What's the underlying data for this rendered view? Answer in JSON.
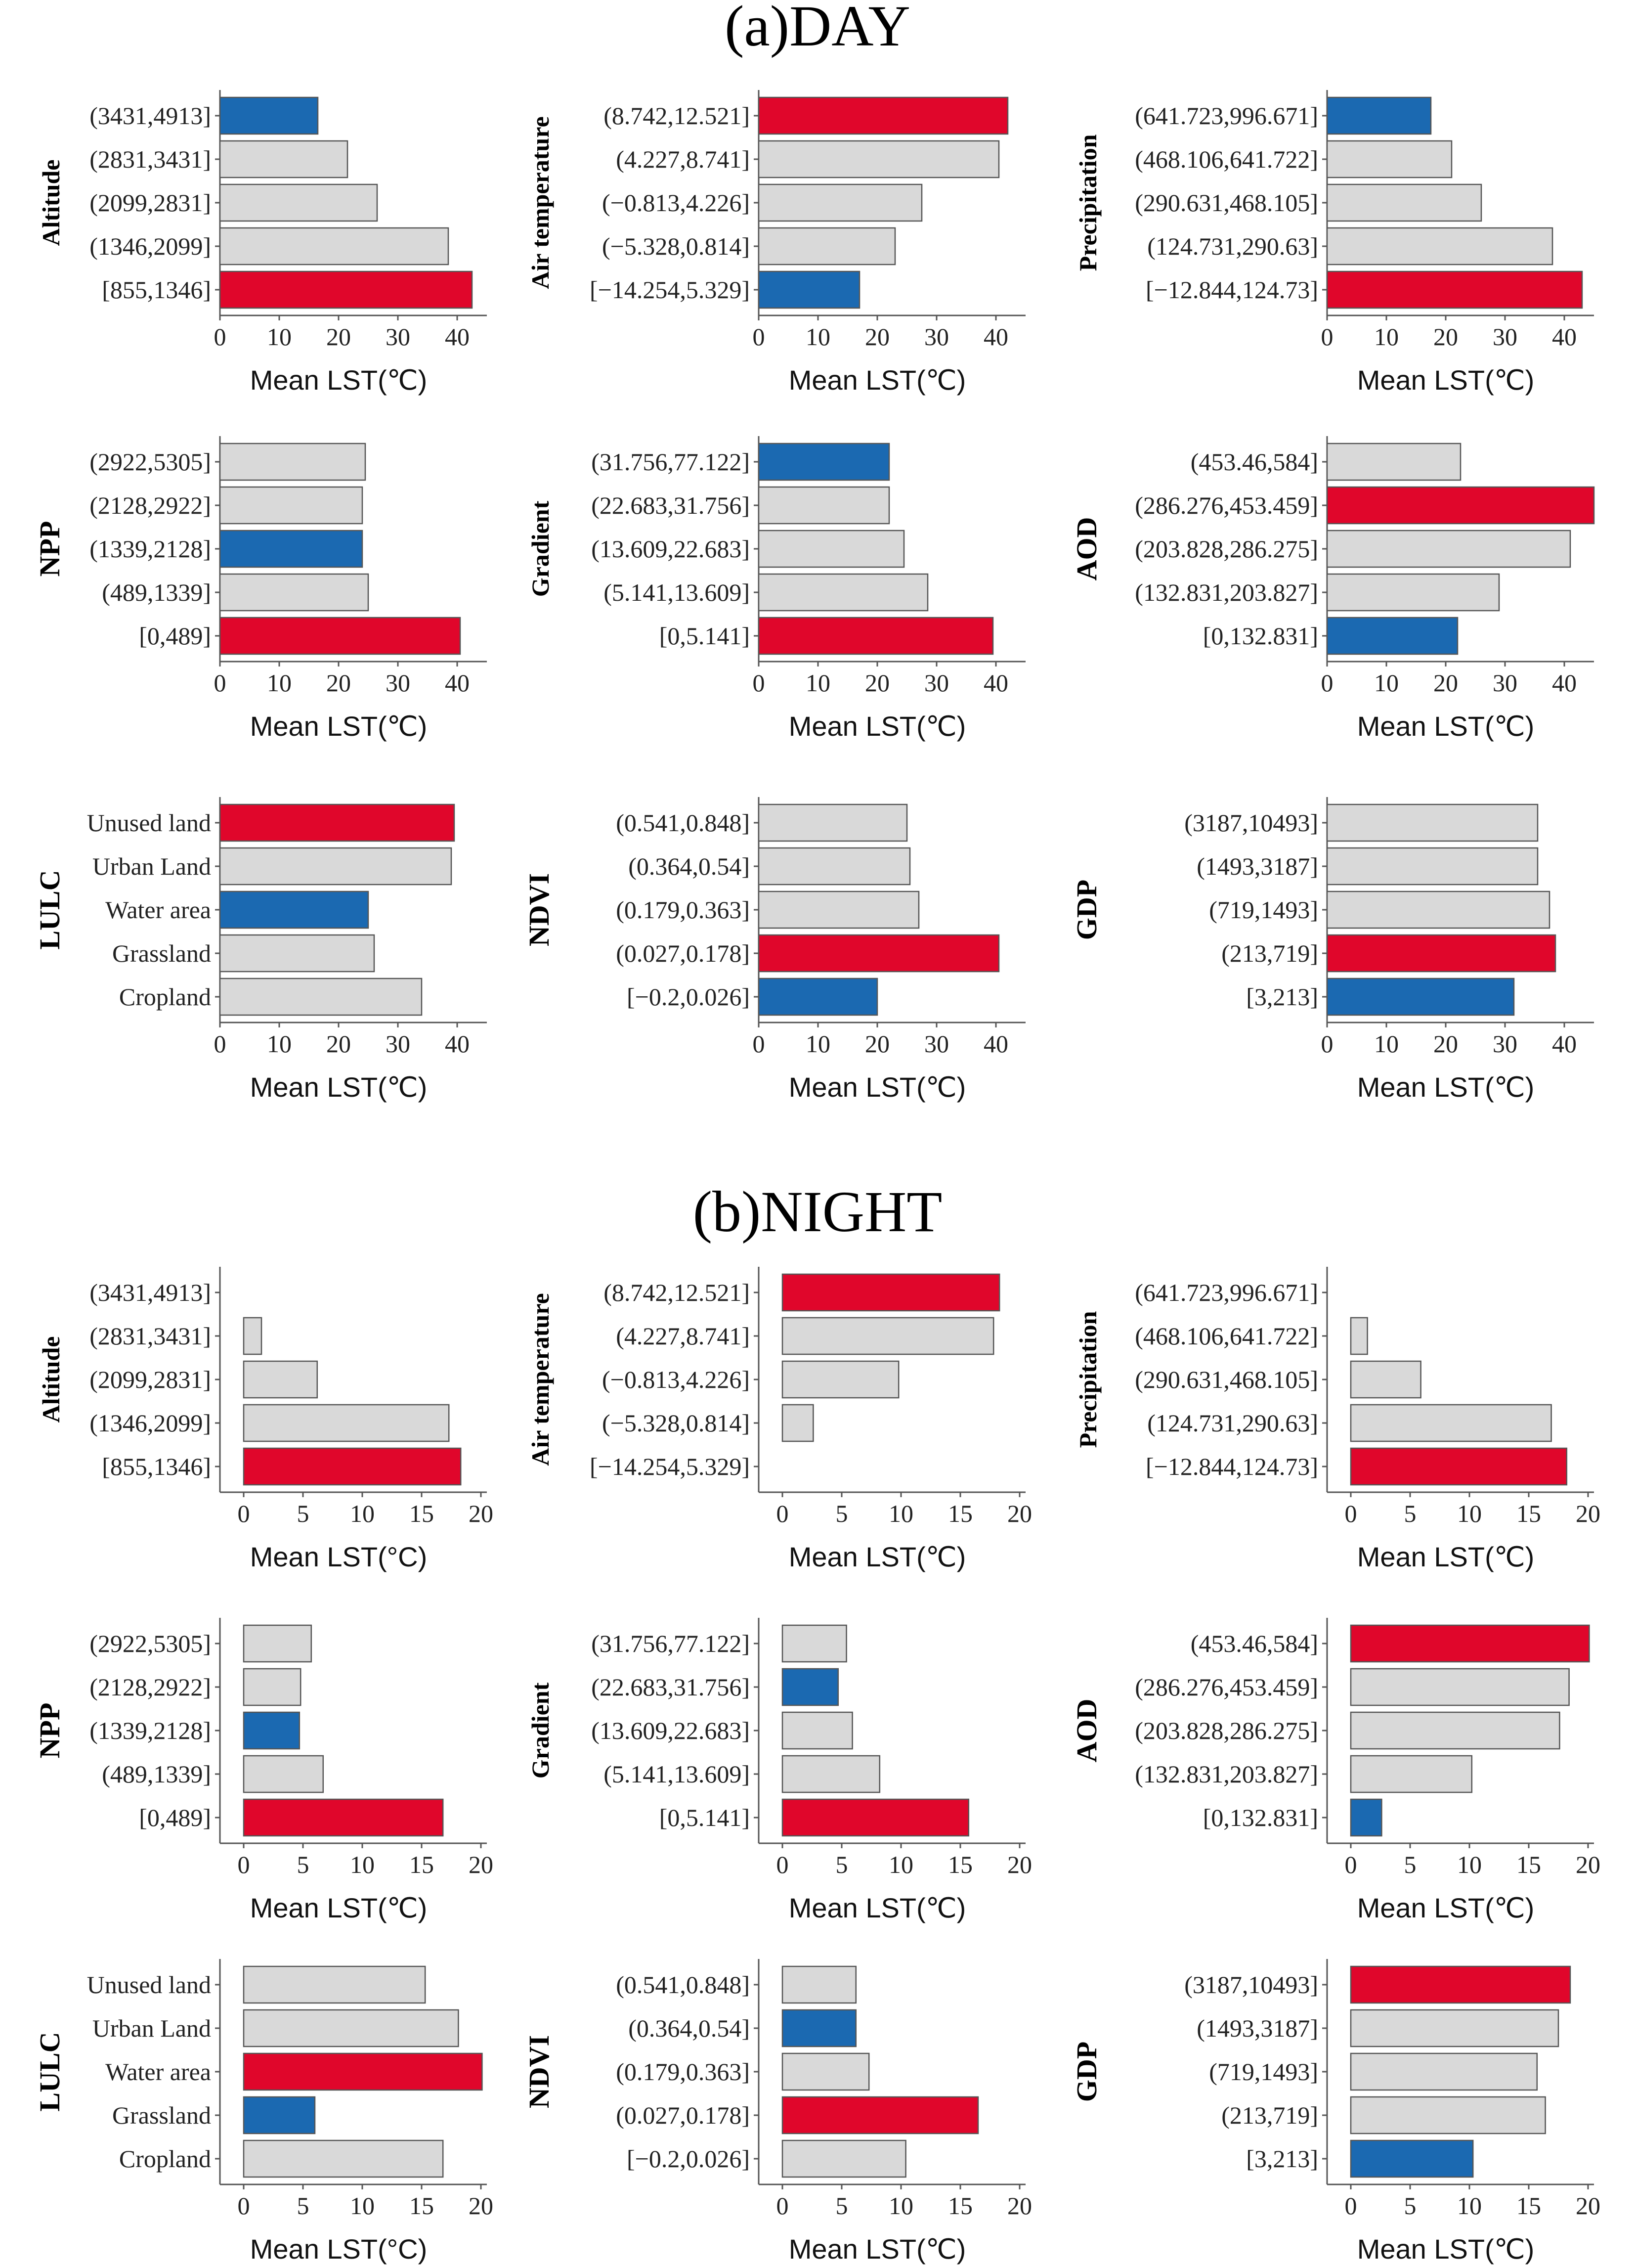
{
  "sections": [
    {
      "title": "(a)DAY"
    },
    {
      "title": "(b)NIGHT"
    }
  ],
  "colors": {
    "highest": "#e0062b",
    "lowest": "#1b69b1",
    "other": "#d9d9d9",
    "edge": "#555555"
  },
  "chart_data": [
    {
      "type": "bar",
      "orientation": "horizontal",
      "section": "(a)DAY",
      "title": "",
      "ylabel": "Altitude",
      "xlabel": "Mean LST(℃)",
      "xlim": [
        0,
        45
      ],
      "xticks": [
        0,
        10,
        20,
        30,
        40
      ],
      "categories": [
        "(3431,4913]",
        "(2831,3431]",
        "(2099,2831]",
        "(1346,2099]",
        "[855,1346]"
      ],
      "values": [
        16.5,
        21.5,
        26.5,
        38.5,
        42.5
      ],
      "highlight": [
        "lowest",
        "other",
        "other",
        "other",
        "highest"
      ]
    },
    {
      "type": "bar",
      "orientation": "horizontal",
      "section": "(a)DAY",
      "title": "",
      "ylabel": "Air temperature",
      "xlabel": "Mean LST(℃)",
      "xlim": [
        0,
        45
      ],
      "xticks": [
        0,
        10,
        20,
        30,
        40
      ],
      "categories": [
        "(8.742,12.521]",
        "(4.227,8.741]",
        "(−0.813,4.226]",
        "(−5.328,0.814]",
        "[−14.254,5.329]"
      ],
      "values": [
        42,
        40.5,
        27.5,
        23,
        17
      ],
      "highlight": [
        "highest",
        "other",
        "other",
        "other",
        "lowest"
      ]
    },
    {
      "type": "bar",
      "orientation": "horizontal",
      "section": "(a)DAY",
      "title": "",
      "ylabel": "Precipitation",
      "xlabel": "Mean LST(℃)",
      "xlim": [
        0,
        45
      ],
      "xticks": [
        0,
        10,
        20,
        30,
        40
      ],
      "categories": [
        "(641.723,996.671]",
        "(468.106,641.722]",
        "(290.631,468.105]",
        "(124.731,290.63]",
        "[−12.844,124.73]"
      ],
      "values": [
        17.5,
        21,
        26,
        38,
        43
      ],
      "highlight": [
        "lowest",
        "other",
        "other",
        "other",
        "highest"
      ]
    },
    {
      "type": "bar",
      "orientation": "horizontal",
      "section": "(a)DAY",
      "title": "",
      "ylabel": "NPP",
      "xlabel": "Mean LST(℃)",
      "xlim": [
        0,
        45
      ],
      "xticks": [
        0,
        10,
        20,
        30,
        40
      ],
      "categories": [
        "(2922,5305]",
        "(2128,2922]",
        "(1339,2128]",
        "(489,1339]",
        "[0,489]"
      ],
      "values": [
        24.5,
        24,
        24,
        25,
        40.5
      ],
      "highlight": [
        "other",
        "other",
        "lowest",
        "other",
        "highest"
      ]
    },
    {
      "type": "bar",
      "orientation": "horizontal",
      "section": "(a)DAY",
      "title": "",
      "ylabel": "Gradient",
      "xlabel": "Mean LST(℃)",
      "xlim": [
        0,
        45
      ],
      "xticks": [
        0,
        10,
        20,
        30,
        40
      ],
      "categories": [
        "(31.756,77.122]",
        "(22.683,31.756]",
        "(13.609,22.683]",
        "(5.141,13.609]",
        "[0,5.141]"
      ],
      "values": [
        22,
        22,
        24.5,
        28.5,
        39.5
      ],
      "highlight": [
        "lowest",
        "other",
        "other",
        "other",
        "highest"
      ]
    },
    {
      "type": "bar",
      "orientation": "horizontal",
      "section": "(a)DAY",
      "title": "",
      "ylabel": "AOD",
      "xlabel": "Mean LST(℃)",
      "xlim": [
        0,
        45
      ],
      "xticks": [
        0,
        10,
        20,
        30,
        40
      ],
      "categories": [
        "(453.46,584]",
        "(286.276,453.459]",
        "(203.828,286.275]",
        "(132.831,203.827]",
        "[0,132.831]"
      ],
      "values": [
        22.5,
        45,
        41,
        29,
        22
      ],
      "highlight": [
        "other",
        "highest",
        "other",
        "other",
        "lowest"
      ]
    },
    {
      "type": "bar",
      "orientation": "horizontal",
      "section": "(a)DAY",
      "title": "",
      "ylabel": "LULC",
      "xlabel": "Mean LST(℃)",
      "xlim": [
        0,
        45
      ],
      "xticks": [
        0,
        10,
        20,
        30,
        40
      ],
      "categories": [
        "Unused land",
        "Urban Land",
        "Water area",
        "Grassland",
        "Cropland"
      ],
      "values": [
        39.5,
        39,
        25,
        26,
        34
      ],
      "highlight": [
        "highest",
        "other",
        "lowest",
        "other",
        "other"
      ]
    },
    {
      "type": "bar",
      "orientation": "horizontal",
      "section": "(a)DAY",
      "title": "",
      "ylabel": "NDVI",
      "xlabel": "Mean LST(℃)",
      "xlim": [
        0,
        45
      ],
      "xticks": [
        0,
        10,
        20,
        30,
        40
      ],
      "categories": [
        "(0.541,0.848]",
        "(0.364,0.54]",
        "(0.179,0.363]",
        "(0.027,0.178]",
        "[−0.2,0.026]"
      ],
      "values": [
        25,
        25.5,
        27,
        40.5,
        20
      ],
      "highlight": [
        "other",
        "other",
        "other",
        "highest",
        "lowest"
      ]
    },
    {
      "type": "bar",
      "orientation": "horizontal",
      "section": "(a)DAY",
      "title": "",
      "ylabel": "GDP",
      "xlabel": "Mean LST(℃)",
      "xlim": [
        0,
        45
      ],
      "xticks": [
        0,
        10,
        20,
        30,
        40
      ],
      "categories": [
        "(3187,10493]",
        "(1493,3187]",
        "(719,1493]",
        "(213,719]",
        "[3,213]"
      ],
      "values": [
        35.5,
        35.5,
        37.5,
        38.5,
        31.5
      ],
      "highlight": [
        "other",
        "other",
        "other",
        "highest",
        "lowest"
      ]
    },
    {
      "type": "bar",
      "orientation": "horizontal",
      "section": "(b)NIGHT",
      "title": "",
      "ylabel": "Altitude",
      "xlabel": "Mean LST(°C)",
      "xlim": [
        -2,
        20.5
      ],
      "xticks": [
        0,
        5,
        10,
        15,
        20
      ],
      "categories": [
        "(3431,4913]",
        "(2831,3431]",
        "(2099,2831]",
        "(1346,2099]",
        "[855,1346]"
      ],
      "values": [
        0,
        1.5,
        6.2,
        17.3,
        18.3
      ],
      "highlight": [
        "lowest",
        "other",
        "other",
        "other",
        "highest"
      ]
    },
    {
      "type": "bar",
      "orientation": "horizontal",
      "section": "(b)NIGHT",
      "title": "",
      "ylabel": "Air temperature",
      "xlabel": "Mean LST(℃)",
      "xlim": [
        -2,
        20.5
      ],
      "xticks": [
        0,
        5,
        10,
        15,
        20
      ],
      "categories": [
        "(8.742,12.521]",
        "(4.227,8.741]",
        "(−0.813,4.226]",
        "(−5.328,0.814]",
        "[−14.254,5.329]"
      ],
      "values": [
        18.3,
        17.8,
        9.8,
        2.6,
        0
      ],
      "highlight": [
        "highest",
        "other",
        "other",
        "other",
        "lowest"
      ]
    },
    {
      "type": "bar",
      "orientation": "horizontal",
      "section": "(b)NIGHT",
      "title": "",
      "ylabel": "Precipitation",
      "xlabel": "Mean LST(℃)",
      "xlim": [
        -2,
        20.5
      ],
      "xticks": [
        0,
        5,
        10,
        15,
        20
      ],
      "categories": [
        "(641.723,996.671]",
        "(468.106,641.722]",
        "(290.631,468.105]",
        "(124.731,290.63]",
        "[−12.844,124.73]"
      ],
      "values": [
        0,
        1.4,
        5.9,
        16.9,
        18.2
      ],
      "highlight": [
        "lowest",
        "other",
        "other",
        "other",
        "highest"
      ]
    },
    {
      "type": "bar",
      "orientation": "horizontal",
      "section": "(b)NIGHT",
      "title": "",
      "ylabel": "NPP",
      "xlabel": "Mean LST(℃)",
      "xlim": [
        -2,
        20.5
      ],
      "xticks": [
        0,
        5,
        10,
        15,
        20
      ],
      "categories": [
        "(2922,5305]",
        "(2128,2922]",
        "(1339,2128]",
        "(489,1339]",
        "[0,489]"
      ],
      "values": [
        5.7,
        4.8,
        4.7,
        6.7,
        16.8
      ],
      "highlight": [
        "other",
        "other",
        "lowest",
        "other",
        "highest"
      ]
    },
    {
      "type": "bar",
      "orientation": "horizontal",
      "section": "(b)NIGHT",
      "title": "",
      "ylabel": "Gradient",
      "xlabel": "Mean LST(℃)",
      "xlim": [
        -2,
        20.5
      ],
      "xticks": [
        0,
        5,
        10,
        15,
        20
      ],
      "categories": [
        "(31.756,77.122]",
        "(22.683,31.756]",
        "(13.609,22.683]",
        "(5.141,13.609]",
        "[0,5.141]"
      ],
      "values": [
        5.4,
        4.7,
        5.9,
        8.2,
        15.7
      ],
      "highlight": [
        "other",
        "lowest",
        "other",
        "other",
        "highest"
      ]
    },
    {
      "type": "bar",
      "orientation": "horizontal",
      "section": "(b)NIGHT",
      "title": "",
      "ylabel": "AOD",
      "xlabel": "Mean LST(℃)",
      "xlim": [
        -2,
        20.5
      ],
      "xticks": [
        0,
        5,
        10,
        15,
        20
      ],
      "categories": [
        "(453.46,584]",
        "(286.276,453.459]",
        "(203.828,286.275]",
        "(132.831,203.827]",
        "[0,132.831]"
      ],
      "values": [
        20.1,
        18.4,
        17.6,
        10.2,
        2.6
      ],
      "highlight": [
        "highest",
        "other",
        "other",
        "other",
        "lowest"
      ]
    },
    {
      "type": "bar",
      "orientation": "horizontal",
      "section": "(b)NIGHT",
      "title": "",
      "ylabel": "LULC",
      "xlabel": "Mean LST(°C)",
      "xlim": [
        -2,
        20.5
      ],
      "xticks": [
        0,
        5,
        10,
        15,
        20
      ],
      "categories": [
        "Unused land",
        "Urban Land",
        "Water area",
        "Grassland",
        "Cropland"
      ],
      "values": [
        15.3,
        18.1,
        20.1,
        6,
        16.8
      ],
      "highlight": [
        "other",
        "other",
        "highest",
        "lowest",
        "other"
      ]
    },
    {
      "type": "bar",
      "orientation": "horizontal",
      "section": "(b)NIGHT",
      "title": "",
      "ylabel": "NDVI",
      "xlabel": "Mean LST(℃)",
      "xlim": [
        -2,
        20.5
      ],
      "xticks": [
        0,
        5,
        10,
        15,
        20
      ],
      "categories": [
        "(0.541,0.848]",
        "(0.364,0.54]",
        "(0.179,0.363]",
        "(0.027,0.178]",
        "[−0.2,0.026]"
      ],
      "values": [
        6.2,
        6.2,
        7.3,
        16.5,
        10.4
      ],
      "highlight": [
        "other",
        "lowest",
        "other",
        "highest",
        "other"
      ]
    },
    {
      "type": "bar",
      "orientation": "horizontal",
      "section": "(b)NIGHT",
      "title": "",
      "ylabel": "GDP",
      "xlabel": "Mean LST(℃)",
      "xlim": [
        -2,
        20.5
      ],
      "xticks": [
        0,
        5,
        10,
        15,
        20
      ],
      "categories": [
        "(3187,10493]",
        "(1493,3187]",
        "(719,1493]",
        "(213,719]",
        "[3,213]"
      ],
      "values": [
        18.5,
        17.5,
        15.7,
        16.4,
        10.3
      ],
      "highlight": [
        "highest",
        "other",
        "other",
        "other",
        "lowest"
      ]
    }
  ]
}
